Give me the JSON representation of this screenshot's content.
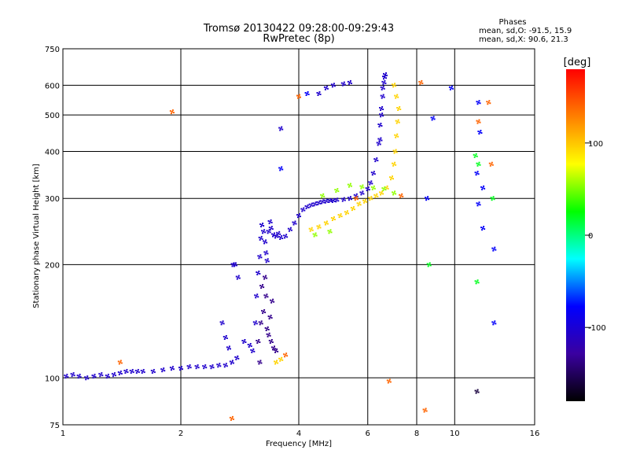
{
  "header": {
    "title_line1": "Tromsø 20130422 09:28:00-09:29:43",
    "title_line2": "RwPretec (8p)"
  },
  "phase_box": {
    "label": "Phases",
    "o_line": "mean, sd,O: -91.5, 15.9",
    "x_line": "mean, sd,X:  90.6, 21.3"
  },
  "chart_data": {
    "type": "scatter",
    "title": "Tromsø 20130422 09:28:00-09:29:43",
    "subtitle": "RwPretec (8p)",
    "xlabel": "Frequency [MHz]",
    "ylabel": "Stationary phase Virtual Height [km]",
    "x_scale": "log",
    "y_scale": "log",
    "xlim": [
      1,
      16
    ],
    "ylim": [
      75,
      750
    ],
    "x_ticks": [
      1,
      2,
      4,
      6,
      8,
      10,
      16
    ],
    "x_tick_labels": [
      "1",
      "2",
      "4",
      "6",
      "8",
      "10",
      "16"
    ],
    "y_ticks": [
      75,
      100,
      200,
      300,
      400,
      500,
      600,
      750
    ],
    "y_tick_labels": [
      "75",
      "100",
      "200",
      "300",
      "400",
      "500",
      "600",
      "750"
    ],
    "grid": true,
    "colorbar": {
      "label": "[deg]",
      "min": -180,
      "max": 180,
      "ticks": [
        100,
        0,
        -100
      ],
      "tick_labels": [
        "100",
        "0",
        "-100"
      ],
      "colors": [
        "#000000",
        "#3a00a0",
        "#0000ff",
        "#00ffff",
        "#00ff00",
        "#ffff00",
        "#ff8000",
        "#ff0000"
      ]
    },
    "series": [
      {
        "trace": "O",
        "phase": -105,
        "x": [
          1.02,
          1.06,
          1.1,
          1.15,
          1.2,
          1.25,
          1.3,
          1.35,
          1.4,
          1.45,
          1.5,
          1.55,
          1.6,
          1.7,
          1.8,
          1.9,
          2.0,
          2.1,
          2.2,
          2.3,
          2.4,
          2.5,
          2.6,
          2.7,
          2.78,
          2.65,
          2.6,
          2.55,
          2.72,
          2.8,
          2.9,
          3.0,
          3.05,
          3.1,
          3.12,
          3.15,
          3.18,
          3.2,
          3.22,
          3.25,
          3.28,
          3.3,
          3.32,
          3.35,
          3.38,
          3.4,
          3.45,
          3.5,
          3.55,
          3.6,
          3.7,
          3.8,
          3.9,
          4.0,
          4.1,
          4.2,
          4.3,
          4.4,
          4.5,
          4.6,
          4.7,
          4.8,
          4.9,
          5.0,
          5.2,
          5.4,
          5.6,
          5.8,
          6.0,
          6.1,
          6.2,
          6.3,
          6.4,
          6.45,
          6.5,
          6.55,
          6.6,
          6.62,
          6.65,
          6.55,
          6.5,
          6.45,
          4.5,
          4.7,
          4.9,
          5.2,
          5.4,
          2.75,
          3.6
        ],
        "y": [
          101,
          102,
          101,
          100,
          101,
          102,
          101,
          102,
          103,
          104,
          104,
          104,
          104,
          104,
          105,
          106,
          106,
          107,
          107,
          107,
          107,
          108,
          108,
          110,
          113,
          120,
          128,
          140,
          200,
          185,
          125,
          122,
          118,
          140,
          165,
          190,
          210,
          235,
          255,
          245,
          230,
          215,
          205,
          245,
          260,
          250,
          240,
          238,
          242,
          236,
          238,
          248,
          258,
          270,
          280,
          285,
          288,
          290,
          292,
          294,
          295,
          296,
          296,
          297,
          298,
          300,
          305,
          310,
          318,
          330,
          350,
          380,
          420,
          470,
          520,
          560,
          610,
          630,
          640,
          590,
          500,
          430,
          570,
          590,
          600,
          605,
          610,
          200,
          460
        ]
      },
      {
        "trace": "O-deep",
        "phase": -135,
        "x": [
          3.2,
          3.25,
          3.3,
          3.35,
          3.4,
          3.45,
          3.5,
          3.22,
          3.28,
          3.32,
          3.38,
          3.42,
          3.15,
          3.18
        ],
        "y": [
          140,
          150,
          165,
          130,
          125,
          120,
          118,
          175,
          185,
          135,
          145,
          160,
          125,
          110
        ]
      },
      {
        "trace": "X",
        "phase": 95,
        "x": [
          4.3,
          4.5,
          4.7,
          4.9,
          5.1,
          5.3,
          5.5,
          5.7,
          5.9,
          6.1,
          6.3,
          6.5,
          6.7,
          6.9,
          7.0,
          7.05,
          7.1,
          7.15,
          7.2,
          7.1,
          7.0,
          3.5,
          3.6
        ],
        "y": [
          248,
          252,
          258,
          265,
          270,
          275,
          282,
          290,
          295,
          300,
          305,
          310,
          320,
          340,
          370,
          400,
          440,
          480,
          520,
          560,
          600,
          110,
          112
        ]
      },
      {
        "trace": "X-side",
        "phase": 55,
        "x": [
          4.6,
          5.0,
          5.4,
          5.8,
          6.2,
          6.6,
          7.0,
          4.4,
          4.8
        ],
        "y": [
          305,
          315,
          325,
          322,
          320,
          318,
          310,
          240,
          245
        ]
      },
      {
        "trace": "mixed",
        "phase": 140,
        "x": [
          1.9,
          2.7,
          4.0,
          5.6,
          7.3,
          8.2,
          8.4,
          11.5,
          12.2,
          12.4,
          6.8,
          1.4,
          3.7
        ],
        "y": [
          510,
          78,
          560,
          300,
          305,
          610,
          82,
          480,
          540,
          370,
          98,
          110,
          115
        ]
      },
      {
        "trace": "scatter-blue",
        "phase": -80,
        "x": [
          3.6,
          4.2,
          8.5,
          8.8,
          9.8,
          11.5,
          11.6,
          11.8,
          11.8,
          11.5,
          11.4,
          12.6,
          12.6
        ],
        "y": [
          360,
          570,
          300,
          490,
          590,
          540,
          450,
          320,
          250,
          290,
          350,
          220,
          140
        ]
      },
      {
        "trace": "scatter-cyan",
        "phase": 20,
        "x": [
          11.3,
          11.5,
          11.4,
          12.5,
          8.6
        ],
        "y": [
          390,
          370,
          180,
          300,
          200
        ]
      },
      {
        "trace": "scatter-dark",
        "phase": -160,
        "x": [
          11.4
        ],
        "y": [
          92
        ]
      }
    ]
  }
}
